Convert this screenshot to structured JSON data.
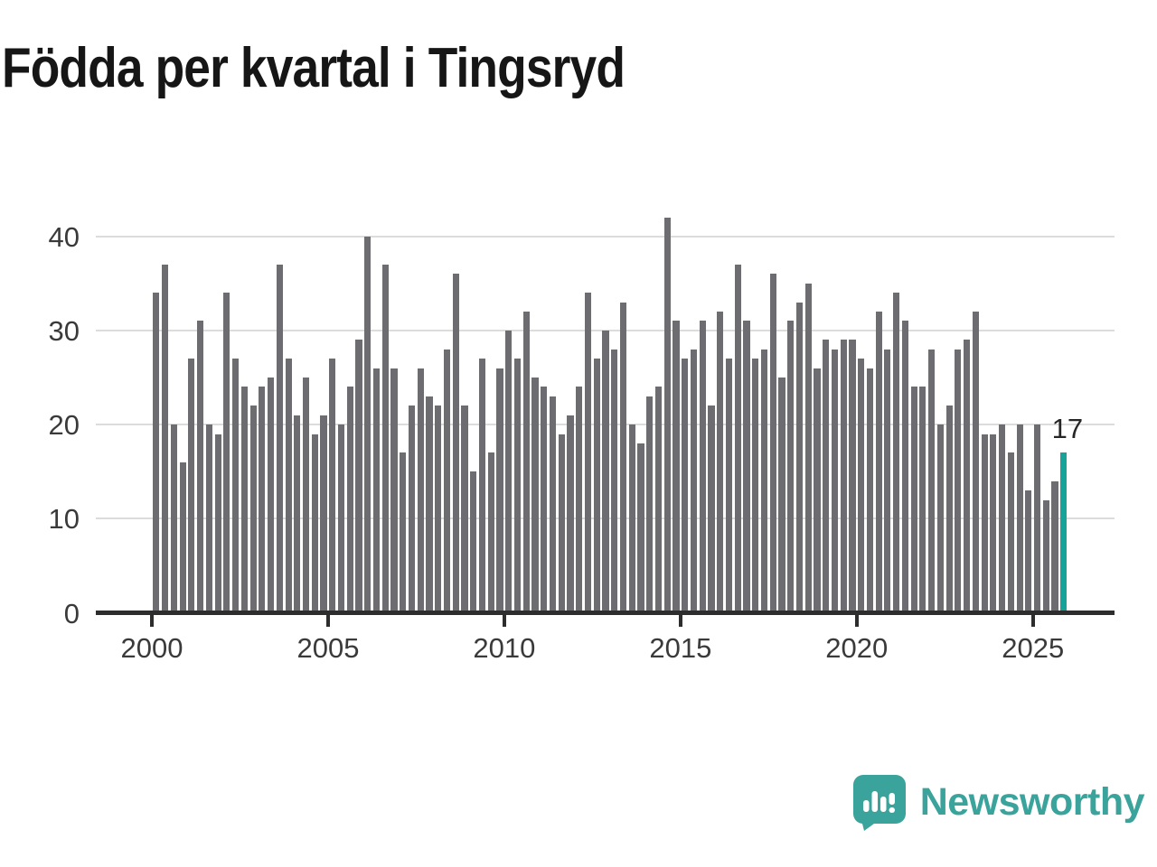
{
  "title": "Födda per kvartal i Tingsryd",
  "chart_data": {
    "type": "bar",
    "title": "Födda per kvartal i Tingsryd",
    "frequency": "quarterly",
    "x_start": "2000 Q1",
    "x_end": "2025 Q4",
    "start_year": 2000,
    "values": [
      34,
      37,
      20,
      16,
      27,
      31,
      20,
      19,
      34,
      27,
      24,
      22,
      24,
      25,
      37,
      27,
      21,
      25,
      19,
      21,
      27,
      20,
      24,
      29,
      40,
      26,
      37,
      26,
      17,
      22,
      26,
      23,
      22,
      28,
      36,
      22,
      15,
      27,
      17,
      26,
      30,
      27,
      32,
      25,
      24,
      23,
      19,
      21,
      24,
      34,
      27,
      30,
      28,
      33,
      20,
      18,
      23,
      24,
      42,
      31,
      27,
      28,
      31,
      22,
      32,
      27,
      37,
      31,
      27,
      28,
      36,
      25,
      31,
      33,
      35,
      26,
      29,
      28,
      29,
      29,
      27,
      26,
      32,
      28,
      34,
      31,
      24,
      24,
      28,
      20,
      22,
      28,
      29,
      32,
      19,
      19,
      20,
      17,
      20,
      13,
      20,
      12,
      14,
      17
    ],
    "highlight_last": true,
    "last_value_label": "17",
    "bar_color": "#6c6c71",
    "highlight_color": "#17a398",
    "y_ticks": [
      0,
      10,
      20,
      30,
      40
    ],
    "x_tick_years": [
      2000,
      2005,
      2010,
      2015,
      2020,
      2025
    ],
    "ylim": [
      0,
      43
    ],
    "grid": "horizontal",
    "legend": "none"
  },
  "footer": {
    "logo_text": "Newsworthy",
    "logo_color": "#3aa39b"
  }
}
